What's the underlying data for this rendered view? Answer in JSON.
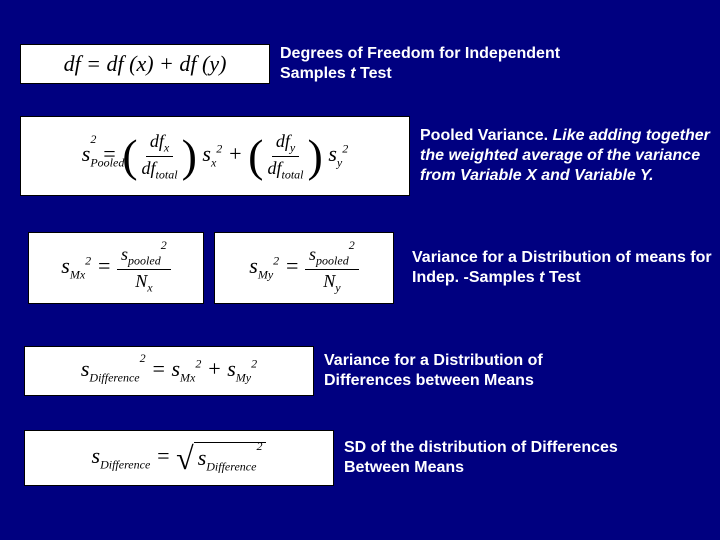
{
  "slide": {
    "background_color": "#000080",
    "text_color": "#ffffff",
    "formula_bg": "#ffffff",
    "font_family_desc": "Arial",
    "font_family_formula": "Times New Roman",
    "desc_fontsize": 16,
    "desc_fontweight": "bold"
  },
  "rows": [
    {
      "formula_tex": "df = df(x) + df(y)",
      "desc_html": "Degrees of Freedom for Independent Samples <i>t</i> Test"
    },
    {
      "formula_tex": "s_{Pooled}^{2} = (df_x / df_{total}) s_x^2 + (df_y / df_{total}) s_y^2",
      "desc_html": "Pooled Variance. <i>Like adding together the weighted average of the variance from Variable X and Variable Y.</i>"
    },
    {
      "formula_tex_a": "s_{Mx}^{2} = s_{pooled}^{2} / N_x",
      "formula_tex_b": "s_{My}^{2} = s_{pooled}^{2} / N_y",
      "desc_html": "Variance for a Distribution of means for Indep. -Samples <i>t</i> Test"
    },
    {
      "formula_tex": "s_{Difference}^{2} = s_{Mx}^{2} + s_{My}^{2}",
      "desc_html": "Variance for a Distribution of Differences between Means"
    },
    {
      "formula_tex": "s_{Difference} = sqrt( s_{Difference}^{2} )",
      "desc_html": "SD of the distribution of Differences Between Means"
    }
  ]
}
